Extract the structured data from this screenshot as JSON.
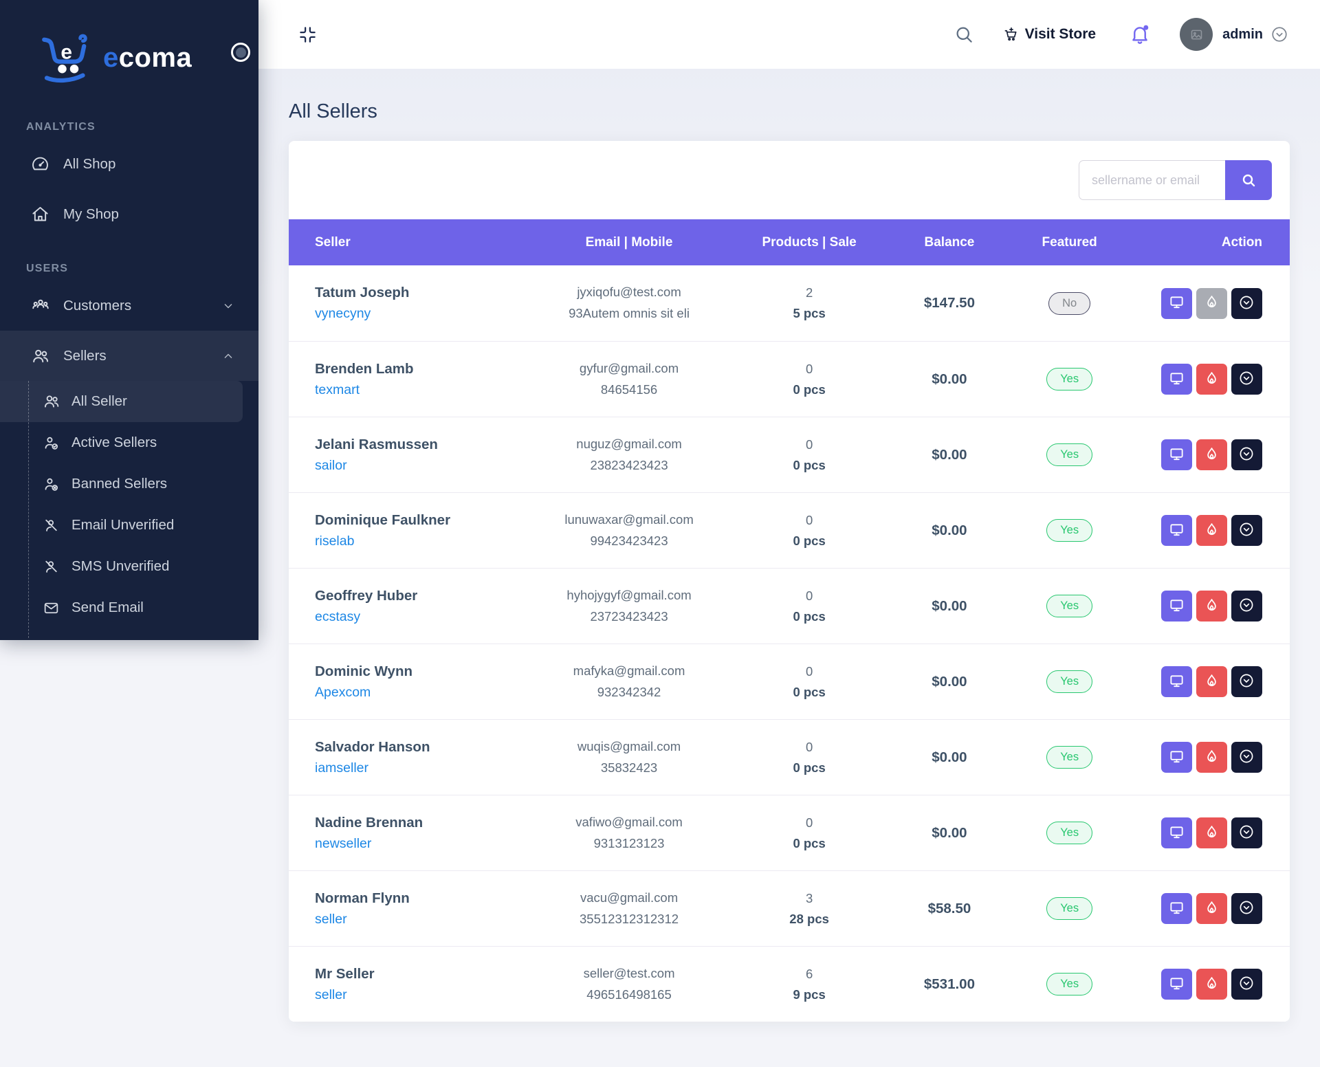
{
  "brand": {
    "cart_letter": "e",
    "logo_prefix": "e",
    "logo_suffix": "coma"
  },
  "header": {
    "visit_store_label": "Visit Store",
    "username": "admin"
  },
  "page": {
    "title": "All Sellers"
  },
  "search": {
    "placeholder": "sellername or email"
  },
  "sidebar": {
    "sections": [
      {
        "label": "ANALYTICS",
        "items": [
          {
            "id": "all-shop",
            "label": "All Shop",
            "icon": "dashboard-icon"
          },
          {
            "id": "my-shop",
            "label": "My Shop",
            "icon": "home-icon"
          }
        ]
      },
      {
        "label": "USERS",
        "items": [
          {
            "id": "customers",
            "label": "Customers",
            "icon": "users-group-icon",
            "chevron": "down"
          },
          {
            "id": "sellers",
            "label": "Sellers",
            "icon": "users-icon",
            "chevron": "up",
            "active": true,
            "children": [
              {
                "id": "all-seller",
                "label": "All Seller",
                "icon": "users-icon",
                "active": true
              },
              {
                "id": "active-sellers",
                "label": "Active Sellers",
                "icon": "user-check-icon"
              },
              {
                "id": "banned-sellers",
                "label": "Banned Sellers",
                "icon": "user-x-icon"
              },
              {
                "id": "email-unverified",
                "label": "Email Unverified",
                "icon": "user-slash-icon"
              },
              {
                "id": "sms-unverified",
                "label": "SMS Unverified",
                "icon": "user-slash-icon"
              },
              {
                "id": "send-email",
                "label": "Send Email",
                "icon": "mail-icon"
              }
            ]
          }
        ]
      }
    ]
  },
  "table": {
    "columns": [
      "Seller",
      "Email | Mobile",
      "Products | Sale",
      "Balance",
      "Featured",
      "Action"
    ],
    "rows": [
      {
        "name": "Tatum Joseph",
        "shop": "vynecyny",
        "email": "jyxiqofu@test.com",
        "mobile": "93Autem omnis sit eli",
        "products": "2",
        "sale": "5 pcs",
        "balance": "$147.50",
        "featured": "No",
        "ban_state": "inactive"
      },
      {
        "name": "Brenden Lamb",
        "shop": "texmart",
        "email": "gyfur@gmail.com",
        "mobile": "84654156",
        "products": "0",
        "sale": "0 pcs",
        "balance": "$0.00",
        "featured": "Yes",
        "ban_state": "active"
      },
      {
        "name": "Jelani Rasmussen",
        "shop": "sailor",
        "email": "nuguz@gmail.com",
        "mobile": "23823423423",
        "products": "0",
        "sale": "0 pcs",
        "balance": "$0.00",
        "featured": "Yes",
        "ban_state": "active"
      },
      {
        "name": "Dominique Faulkner",
        "shop": "riselab",
        "email": "lunuwaxar@gmail.com",
        "mobile": "99423423423",
        "products": "0",
        "sale": "0 pcs",
        "balance": "$0.00",
        "featured": "Yes",
        "ban_state": "active"
      },
      {
        "name": "Geoffrey Huber",
        "shop": "ecstasy",
        "email": "hyhojygyf@gmail.com",
        "mobile": "23723423423",
        "products": "0",
        "sale": "0 pcs",
        "balance": "$0.00",
        "featured": "Yes",
        "ban_state": "active"
      },
      {
        "name": "Dominic Wynn",
        "shop": "Apexcom",
        "email": "mafyka@gmail.com",
        "mobile": "932342342",
        "products": "0",
        "sale": "0 pcs",
        "balance": "$0.00",
        "featured": "Yes",
        "ban_state": "active"
      },
      {
        "name": "Salvador Hanson",
        "shop": "iamseller",
        "email": "wuqis@gmail.com",
        "mobile": "35832423",
        "products": "0",
        "sale": "0 pcs",
        "balance": "$0.00",
        "featured": "Yes",
        "ban_state": "active"
      },
      {
        "name": "Nadine Brennan",
        "shop": "newseller",
        "email": "vafiwo@gmail.com",
        "mobile": "9313123123",
        "products": "0",
        "sale": "0 pcs",
        "balance": "$0.00",
        "featured": "Yes",
        "ban_state": "active"
      },
      {
        "name": "Norman Flynn",
        "shop": "seller",
        "email": "vacu@gmail.com",
        "mobile": "35512312312312",
        "products": "3",
        "sale": "28 pcs",
        "balance": "$58.50",
        "featured": "Yes",
        "ban_state": "active"
      },
      {
        "name": "Mr Seller",
        "shop": "seller",
        "email": "seller@test.com",
        "mobile": "496516498165",
        "products": "6",
        "sale": "9 pcs",
        "balance": "$531.00",
        "featured": "Yes",
        "ban_state": "active"
      }
    ]
  },
  "colors": {
    "accent": "#6E63E8",
    "danger": "#EA5455",
    "danger_muted": "#A9ACB3",
    "dark": "#141A35",
    "success": "#28C76F",
    "link": "#1D87E5",
    "sidebar_bg": "#17223D"
  }
}
